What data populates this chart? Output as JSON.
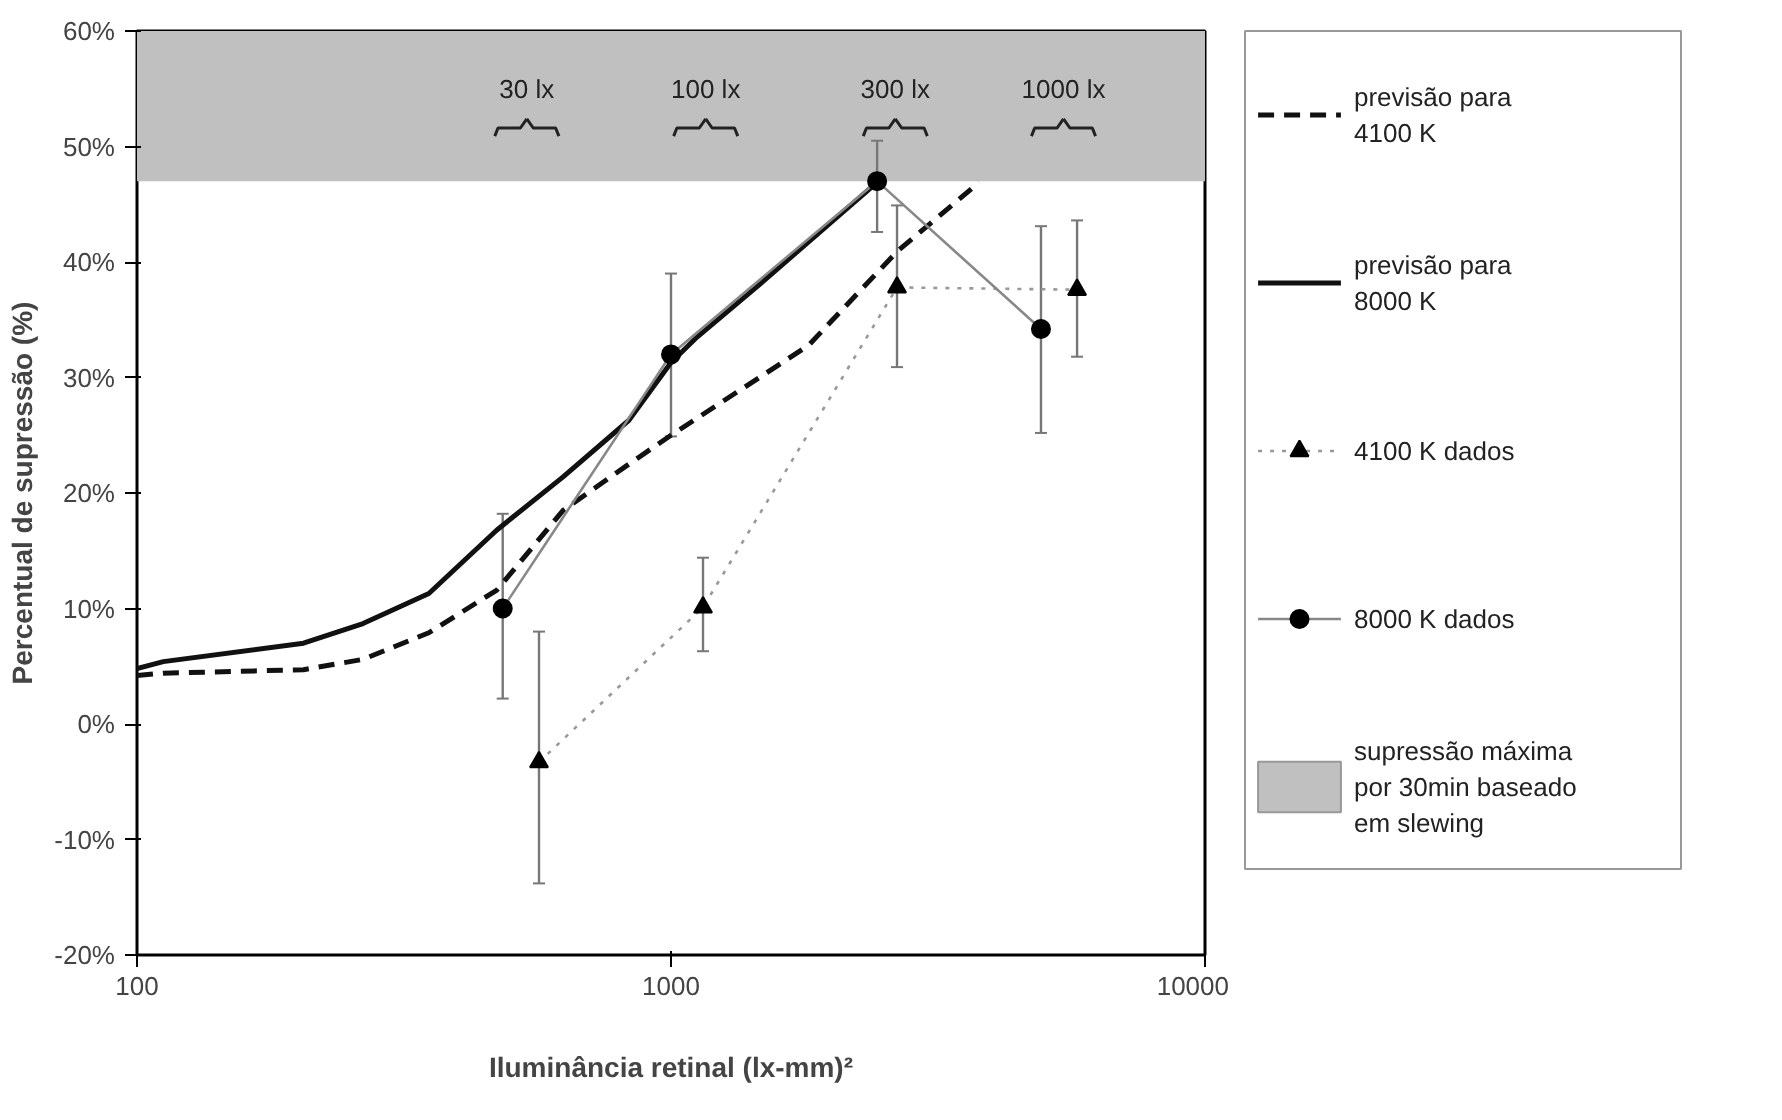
{
  "chart_data": {
    "type": "line",
    "xlabel": "Iluminância retinal (lx-mm)²",
    "ylabel": "Percentual de supressão (%)",
    "log": "x",
    "xlim": [
      100,
      10000
    ],
    "xticks": [
      100,
      1000,
      10000
    ],
    "ylim": [
      -20,
      60
    ],
    "yticks": [
      {
        "value": -20,
        "label": "-20%"
      },
      {
        "value": -10,
        "label": "-10%"
      },
      {
        "value": 0,
        "label": "0%"
      },
      {
        "value": 10,
        "label": "10%"
      },
      {
        "value": 20,
        "label": "20%"
      },
      {
        "value": 30,
        "label": "30%"
      },
      {
        "value": 40,
        "label": "40%"
      },
      {
        "value": 50,
        "label": "50%"
      },
      {
        "value": 60,
        "label": "60%"
      }
    ],
    "grid": false,
    "legend": "right",
    "series": [
      {
        "name": "previsão para\n4100 K",
        "color": "#111111",
        "line_style": "dashed",
        "x": [
          100,
          112,
          205,
          265,
          352,
          472,
          628,
          834,
          1000,
          1486,
          1811,
          2650,
          3776
        ],
        "values": [
          4.2,
          4.4,
          4.7,
          5.6,
          7.9,
          11.6,
          18.5,
          22.5,
          25,
          30.2,
          32.8,
          40.9,
          46.9
        ]
      },
      {
        "name": "previsão para\n8000 K",
        "color": "#111111",
        "line_style": "solid",
        "x": [
          100,
          112,
          205,
          265,
          352,
          472,
          628,
          834,
          1000,
          1119,
          1486,
          2390
        ],
        "values": [
          4.8,
          5.4,
          7.0,
          8.7,
          11.3,
          16.8,
          21.4,
          26.3,
          31.3,
          33.5,
          38.3,
          46.6
        ]
      },
      {
        "name": "4100 K dados",
        "color": "#999999",
        "line_style": "dotted",
        "marker": "triangle",
        "x": [
          566,
          1148,
          2650,
          5760
        ],
        "values": [
          -3.3,
          10.1,
          37.8,
          37.6
        ],
        "errors": [
          [
            -13.8,
            8
          ],
          [
            6.3,
            14.4
          ],
          [
            30.9,
            44.9
          ],
          [
            31.8,
            43.6
          ]
        ]
      },
      {
        "name": "8000 K dados",
        "color": "#888888",
        "line_style": "solid",
        "marker": "circle",
        "x": [
          484,
          1000,
          2432,
          4930
        ],
        "values": [
          10,
          32,
          47,
          34.2
        ],
        "errors": [
          [
            2.2,
            18.2
          ],
          [
            24.9,
            39
          ],
          [
            42.6,
            50.5
          ],
          [
            25.2,
            43.1
          ]
        ]
      }
    ],
    "bands": [
      {
        "axis": "y",
        "from": 47,
        "to": 60,
        "color": "#c0c0c0",
        "label": "supressão máxima\npor 30min baseado\nem slewing"
      }
    ],
    "annotations": [
      "30 lx",
      "100 lx",
      "300 lx",
      "1000 lx"
    ]
  }
}
